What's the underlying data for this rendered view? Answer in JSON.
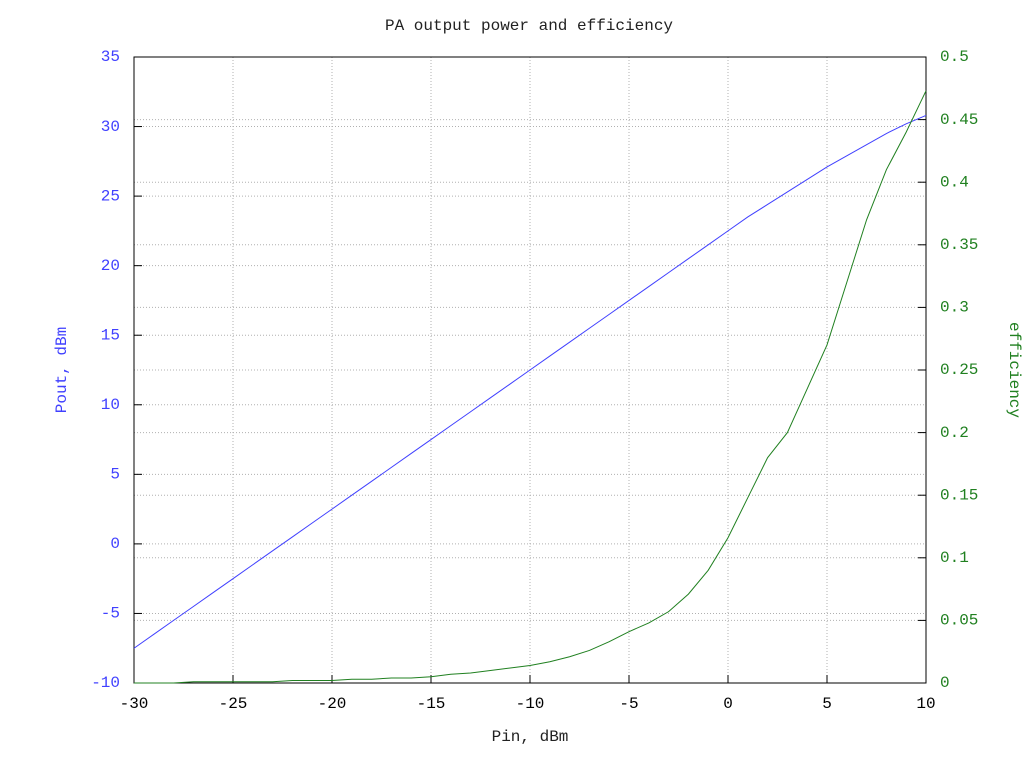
{
  "chart_data": {
    "type": "line",
    "title": "PA output power and efficiency",
    "xlabel": "Pin, dBm",
    "ylabel": "Pout, dBm",
    "y2label": "efficiency",
    "x": [
      -30,
      -29,
      -28,
      -27,
      -26,
      -25,
      -24,
      -23,
      -22,
      -21,
      -20,
      -19,
      -18,
      -17,
      -16,
      -15,
      -14,
      -13,
      -12,
      -11,
      -10,
      -9,
      -8,
      -7,
      -6,
      -5,
      -4,
      -3,
      -2,
      -1,
      0,
      1,
      2,
      3,
      4,
      5,
      6,
      7,
      8,
      9,
      10
    ],
    "series": [
      {
        "name": "Pout",
        "color": "#4040ff",
        "values": [
          -7.5,
          -6.5,
          -5.5,
          -4.5,
          -3.5,
          -2.5,
          -1.5,
          -0.5,
          0.5,
          1.5,
          2.5,
          3.5,
          4.5,
          5.5,
          6.5,
          7.5,
          8.5,
          9.5,
          10.5,
          11.5,
          12.5,
          13.5,
          14.5,
          15.5,
          16.5,
          17.5,
          18.5,
          19.5,
          20.5,
          21.5,
          22.5,
          23.5,
          24.4,
          25.3,
          26.2,
          27.1,
          27.9,
          28.7,
          29.5,
          30.2,
          30.8
        ]
      },
      {
        "name": "efficiency",
        "color": "#208020",
        "axis": "y2",
        "values": [
          0,
          0,
          0,
          0.001,
          0.001,
          0.001,
          0.001,
          0.001,
          0.002,
          0.002,
          0.002,
          0.003,
          0.003,
          0.004,
          0.004,
          0.005,
          0.007,
          0.008,
          0.01,
          0.012,
          0.014,
          0.017,
          0.021,
          0.026,
          0.033,
          0.041,
          0.048,
          0.057,
          0.071,
          0.09,
          0.116,
          0.148,
          0.18,
          0.2,
          0.235,
          0.27,
          0.32,
          0.37,
          0.41,
          0.44,
          0.473
        ]
      }
    ],
    "xlim": [
      -30,
      10
    ],
    "xticks": [
      -30,
      -25,
      -20,
      -15,
      -10,
      -5,
      0,
      5,
      10
    ],
    "ylim": [
      -10,
      35
    ],
    "yticks": [
      -10,
      -5,
      0,
      5,
      10,
      15,
      20,
      25,
      30,
      35
    ],
    "y2lim": [
      0,
      0.5
    ],
    "y2ticks": [
      0,
      0.05,
      0.1,
      0.15,
      0.2,
      0.25,
      0.3,
      0.35,
      0.4,
      0.45,
      0.5
    ],
    "grid": true
  }
}
